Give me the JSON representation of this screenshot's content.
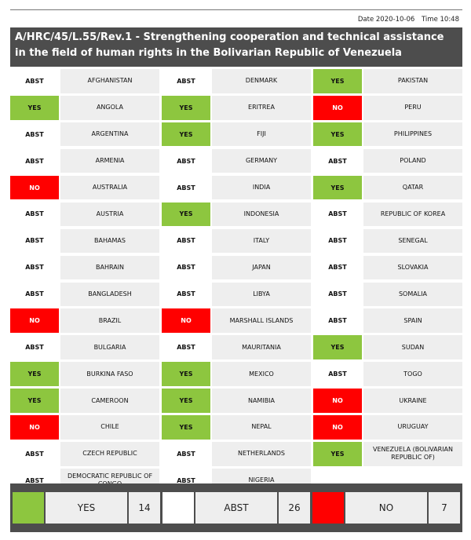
{
  "meta": {
    "date": "Date 2020-10-06",
    "time": "Time 10:48"
  },
  "title": "A/HRC/45/L.55/Rev.1 - Strengthening cooperation and technical assistance in the field of human rights in the Bolivarian Republic of Venezuela",
  "colors": {
    "yes": "#8dc63f",
    "no": "#ff0000",
    "abst": "#ffffff",
    "header": "#4d4d4d",
    "cell": "#eeeeee"
  },
  "columns": [
    [
      {
        "vote": "ABST",
        "country": "AFGHANISTAN"
      },
      {
        "vote": "YES",
        "country": "ANGOLA"
      },
      {
        "vote": "ABST",
        "country": "ARGENTINA"
      },
      {
        "vote": "ABST",
        "country": "ARMENIA"
      },
      {
        "vote": "NO",
        "country": "AUSTRALIA"
      },
      {
        "vote": "ABST",
        "country": "AUSTRIA"
      },
      {
        "vote": "ABST",
        "country": "BAHAMAS"
      },
      {
        "vote": "ABST",
        "country": "BAHRAIN"
      },
      {
        "vote": "ABST",
        "country": "BANGLADESH"
      },
      {
        "vote": "NO",
        "country": "BRAZIL"
      },
      {
        "vote": "ABST",
        "country": "BULGARIA"
      },
      {
        "vote": "YES",
        "country": "BURKINA FASO"
      },
      {
        "vote": "YES",
        "country": "CAMEROON"
      },
      {
        "vote": "NO",
        "country": "CHILE"
      },
      {
        "vote": "ABST",
        "country": "CZECH REPUBLIC"
      },
      {
        "vote": "ABST",
        "country": "DEMOCRATIC REPUBLIC OF CONGO"
      }
    ],
    [
      {
        "vote": "ABST",
        "country": "DENMARK"
      },
      {
        "vote": "YES",
        "country": "ERITREA"
      },
      {
        "vote": "YES",
        "country": "FIJI"
      },
      {
        "vote": "ABST",
        "country": "GERMANY"
      },
      {
        "vote": "ABST",
        "country": "INDIA"
      },
      {
        "vote": "YES",
        "country": "INDONESIA"
      },
      {
        "vote": "ABST",
        "country": "ITALY"
      },
      {
        "vote": "ABST",
        "country": "JAPAN"
      },
      {
        "vote": "ABST",
        "country": "LIBYA"
      },
      {
        "vote": "NO",
        "country": "MARSHALL ISLANDS"
      },
      {
        "vote": "ABST",
        "country": "MAURITANIA"
      },
      {
        "vote": "YES",
        "country": "MEXICO"
      },
      {
        "vote": "YES",
        "country": "NAMIBIA"
      },
      {
        "vote": "YES",
        "country": "NEPAL"
      },
      {
        "vote": "ABST",
        "country": "NETHERLANDS"
      },
      {
        "vote": "ABST",
        "country": "NIGERIA"
      }
    ],
    [
      {
        "vote": "YES",
        "country": "PAKISTAN"
      },
      {
        "vote": "NO",
        "country": "PERU"
      },
      {
        "vote": "YES",
        "country": "PHILIPPINES"
      },
      {
        "vote": "ABST",
        "country": "POLAND"
      },
      {
        "vote": "YES",
        "country": "QATAR"
      },
      {
        "vote": "ABST",
        "country": "REPUBLIC OF KOREA"
      },
      {
        "vote": "ABST",
        "country": "SENEGAL"
      },
      {
        "vote": "ABST",
        "country": "SLOVAKIA"
      },
      {
        "vote": "ABST",
        "country": "SOMALIA"
      },
      {
        "vote": "ABST",
        "country": "SPAIN"
      },
      {
        "vote": "YES",
        "country": "SUDAN"
      },
      {
        "vote": "ABST",
        "country": "TOGO"
      },
      {
        "vote": "NO",
        "country": "UKRAINE"
      },
      {
        "vote": "NO",
        "country": "URUGUAY"
      },
      {
        "vote": "YES",
        "country": "VENEZUELA (BOLIVARIAN REPUBLIC OF)"
      }
    ]
  ],
  "summary": [
    {
      "label": "YES",
      "count": "14",
      "kind": "yes"
    },
    {
      "label": "ABST",
      "count": "26",
      "kind": "abst"
    },
    {
      "label": "NO",
      "count": "7",
      "kind": "no"
    }
  ]
}
